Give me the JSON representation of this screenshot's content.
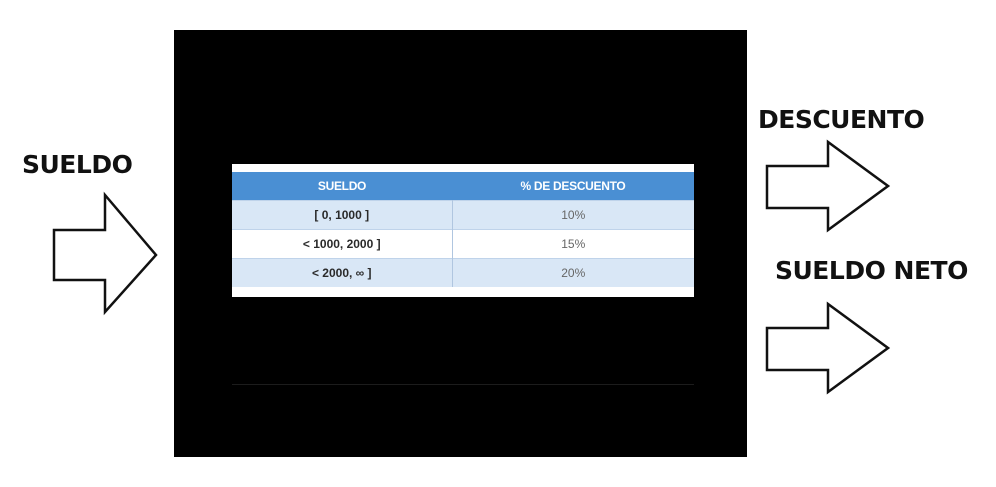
{
  "labels": {
    "input": "SUELDO",
    "output_discount": "DESCUENTO",
    "output_net": "SUELDO NETO"
  },
  "table": {
    "headers": [
      "SUELDO",
      "% DE DESCUENTO"
    ],
    "rows": [
      [
        "[ 0, 1000 ]",
        "10%"
      ],
      [
        "< 1000, 2000 ]",
        "15%"
      ],
      [
        "< 2000, ∞ ]",
        "20%"
      ]
    ]
  },
  "colors": {
    "header_bg": "#4a8fd3",
    "row_shade": "#d9e7f6",
    "box": "#000000",
    "arrow_stroke": "#111111"
  },
  "icons": [
    "right-arrow-icon"
  ]
}
